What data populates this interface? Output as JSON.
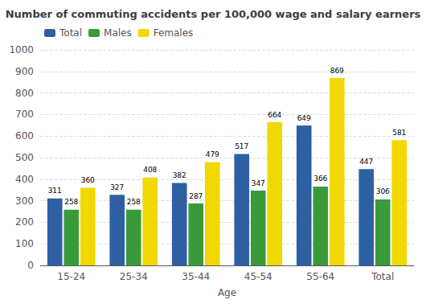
{
  "chart_data": {
    "type": "bar",
    "title": "Number of commuting accidents per 100,000 wage and salary earners",
    "xlabel": "Age",
    "categories": [
      "15-24",
      "25-34",
      "35-44",
      "45-54",
      "55-64",
      "Total"
    ],
    "series": [
      {
        "name": "Total",
        "color": "#2e5fa3",
        "values": [
          311,
          327,
          382,
          517,
          649,
          447
        ]
      },
      {
        "name": "Males",
        "color": "#3a9a3a",
        "values": [
          258,
          258,
          287,
          347,
          366,
          306
        ]
      },
      {
        "name": "Females",
        "color": "#f0d800",
        "values": [
          360,
          408,
          479,
          664,
          869,
          581
        ]
      }
    ],
    "ylim": [
      0,
      1000
    ],
    "yticks": [
      0,
      100,
      200,
      300,
      400,
      500,
      600,
      700,
      800,
      900,
      1000
    ],
    "grid": true,
    "legend": "upper left",
    "data_labels": true
  }
}
